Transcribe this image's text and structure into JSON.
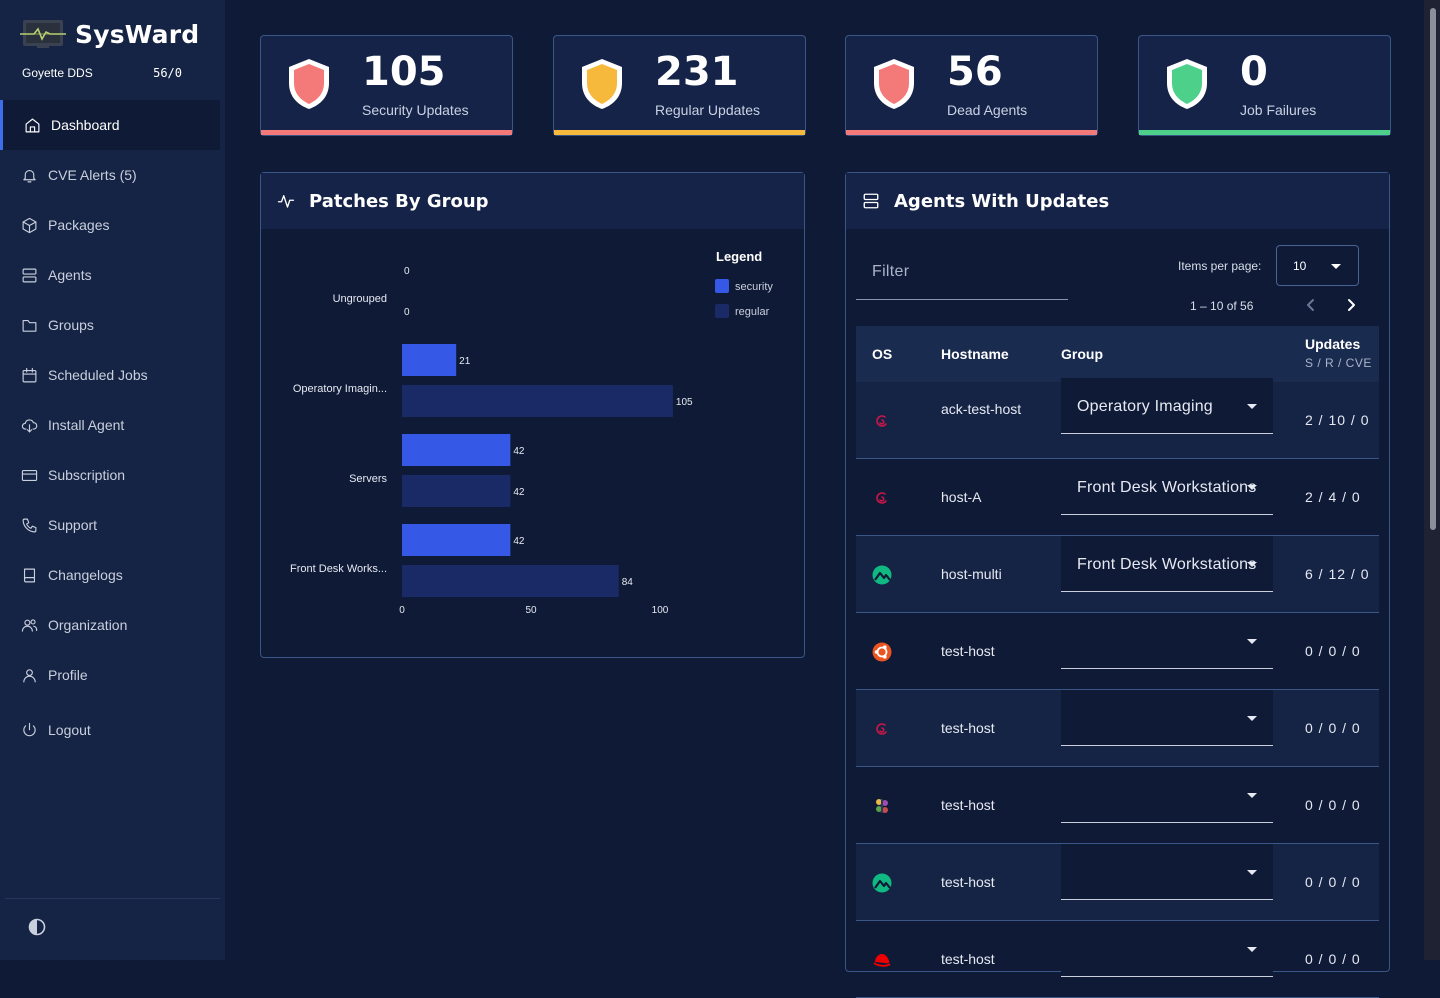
{
  "app": {
    "name": "SysWard",
    "org_name": "Goyette DDS",
    "org_count": "56/0"
  },
  "sidebar": {
    "items": [
      {
        "label": "Dashboard",
        "icon": "home-icon",
        "active": true
      },
      {
        "label": "CVE Alerts (5)",
        "icon": "bell-icon"
      },
      {
        "label": "Packages",
        "icon": "cube-icon"
      },
      {
        "label": "Agents",
        "icon": "server-icon"
      },
      {
        "label": "Groups",
        "icon": "folder-icon"
      },
      {
        "label": "Scheduled Jobs",
        "icon": "calendar-icon"
      },
      {
        "label": "Install Agent",
        "icon": "cloud-download-icon"
      },
      {
        "label": "Subscription",
        "icon": "credit-card-icon"
      },
      {
        "label": "Support",
        "icon": "phone-icon"
      },
      {
        "label": "Changelogs",
        "icon": "book-icon"
      },
      {
        "label": "Organization",
        "icon": "users-icon"
      },
      {
        "label": "Profile",
        "icon": "user-icon"
      },
      {
        "label": "Logout",
        "icon": "power-icon"
      }
    ]
  },
  "stats": [
    {
      "value": "105",
      "label": "Security Updates",
      "color": "#f47a7a"
    },
    {
      "value": "231",
      "label": "Regular Updates",
      "color": "#f6b93b"
    },
    {
      "value": "56",
      "label": "Dead Agents",
      "color": "#f47a7a"
    },
    {
      "value": "0",
      "label": "Job Failures",
      "color": "#4cd08a"
    }
  ],
  "patches_panel": {
    "title": "Patches By Group"
  },
  "chart_data": {
    "type": "bar",
    "orientation": "horizontal",
    "categories": [
      "Ungrouped",
      "Operatory Imagin...",
      "Servers",
      "Front Desk Works..."
    ],
    "series": [
      {
        "name": "security",
        "values": [
          0,
          21,
          42,
          42
        ],
        "color": "#3558e6"
      },
      {
        "name": "regular",
        "values": [
          0,
          105,
          42,
          84
        ],
        "color": "#1a2a66"
      }
    ],
    "x_ticks": [
      "0",
      "50",
      "100"
    ],
    "xlim": [
      0,
      105
    ],
    "legend_title": "Legend",
    "legend_position": "top-right"
  },
  "agents_panel": {
    "title": "Agents With Updates",
    "filter_label": "Filter",
    "items_per_page_label": "Items per page:",
    "items_per_page_value": "10",
    "range_label": "1 – 10 of 56",
    "columns": {
      "os": "OS",
      "hostname": "Hostname",
      "group": "Group",
      "updates": "Updates",
      "updates_sub": "S / R / CVE"
    },
    "rows": [
      {
        "os": "debian-icon",
        "hostname": "ack-test-host",
        "group": "Operatory Imaging",
        "updates": "2 / 10 / 0"
      },
      {
        "os": "debian-icon",
        "hostname": "host-A",
        "group": "Front Desk Workstations",
        "updates": "2 / 4 / 0"
      },
      {
        "os": "rocky-linux-icon",
        "hostname": "host-multi",
        "group": "Front Desk Workstations",
        "updates": "6 / 12 / 0"
      },
      {
        "os": "ubuntu-icon",
        "hostname": "test-host",
        "group": "",
        "updates": "0 / 0 / 0"
      },
      {
        "os": "debian-icon",
        "hostname": "test-host",
        "group": "",
        "updates": "0 / 0 / 0"
      },
      {
        "os": "slackware-icon",
        "hostname": "test-host",
        "group": "",
        "updates": "0 / 0 / 0"
      },
      {
        "os": "rocky-linux-icon",
        "hostname": "test-host",
        "group": "",
        "updates": "0 / 0 / 0"
      },
      {
        "os": "redhat-icon",
        "hostname": "test-host",
        "group": "",
        "updates": "0 / 0 / 0"
      }
    ]
  }
}
